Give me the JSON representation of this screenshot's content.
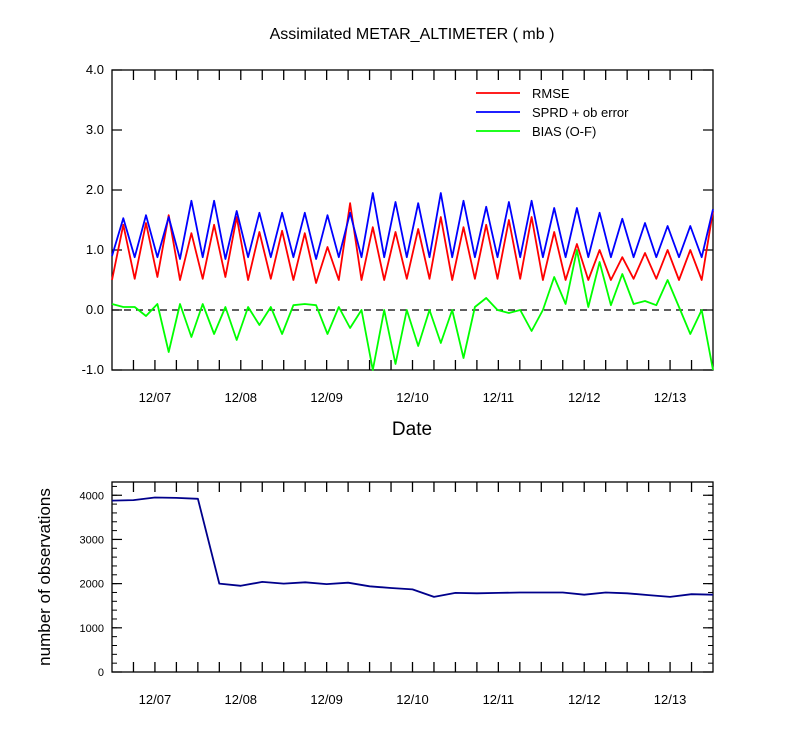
{
  "chart_data": [
    {
      "type": "line",
      "title": "Assimilated METAR_ALTIMETER ( mb )",
      "xlabel": "Date",
      "ylabel": "",
      "ylim": [
        -1.0,
        4.0
      ],
      "yticks": [
        "4.0",
        "3.0",
        "2.0",
        "1.0",
        "0.0",
        "-1.0"
      ],
      "ytick_values": [
        4,
        3,
        2,
        1,
        0,
        -1
      ],
      "xlim": [
        0,
        28
      ],
      "date_labels": [
        "12/07",
        "12/08",
        "12/09",
        "12/10",
        "12/11",
        "12/12",
        "12/13"
      ],
      "date_positions": [
        2,
        6,
        10,
        14,
        18,
        22,
        26
      ],
      "legend_position": "top-right",
      "zero_line": "dashed",
      "series": [
        {
          "name": "RMSE",
          "color": "#ff0000",
          "values": [
            0.5,
            1.42,
            0.52,
            1.45,
            0.55,
            1.58,
            0.5,
            1.28,
            0.52,
            1.42,
            0.55,
            1.55,
            0.5,
            1.3,
            0.52,
            1.32,
            0.5,
            1.28,
            0.45,
            1.05,
            0.5,
            1.78,
            0.5,
            1.38,
            0.5,
            1.3,
            0.52,
            1.35,
            0.52,
            1.55,
            0.5,
            1.38,
            0.52,
            1.42,
            0.52,
            1.5,
            0.52,
            1.55,
            0.5,
            1.3,
            0.5,
            1.1,
            0.5,
            1.0,
            0.5,
            0.88,
            0.52,
            0.95,
            0.52,
            1.0,
            0.5,
            1.0,
            0.5,
            1.65
          ]
        },
        {
          "name": "SPRD + ob error",
          "color": "#0000ff",
          "values": [
            0.9,
            1.53,
            0.88,
            1.58,
            0.88,
            1.55,
            0.85,
            1.82,
            0.88,
            1.82,
            0.85,
            1.65,
            0.88,
            1.62,
            0.88,
            1.62,
            0.88,
            1.62,
            0.85,
            1.58,
            0.88,
            1.62,
            0.88,
            1.95,
            0.88,
            1.8,
            0.88,
            1.78,
            0.88,
            1.95,
            0.88,
            1.82,
            0.88,
            1.72,
            0.88,
            1.8,
            0.88,
            1.82,
            0.88,
            1.7,
            0.88,
            1.7,
            0.88,
            1.62,
            0.88,
            1.52,
            0.88,
            1.45,
            0.88,
            1.4,
            0.88,
            1.4,
            0.88,
            1.68
          ]
        },
        {
          "name": "BIAS (O-F)",
          "color": "#00ff00",
          "values": [
            0.1,
            0.05,
            0.05,
            -0.1,
            0.1,
            -0.7,
            0.1,
            -0.45,
            0.1,
            -0.4,
            0.05,
            -0.5,
            0.05,
            -0.25,
            0.05,
            -0.4,
            0.08,
            0.1,
            0.08,
            -0.4,
            0.05,
            -0.3,
            0.0,
            -1.0,
            0.0,
            -0.9,
            0.0,
            -0.6,
            0.0,
            -0.55,
            0.0,
            -0.8,
            0.05,
            0.2,
            0.0,
            -0.05,
            0.0,
            -0.35,
            0.0,
            0.55,
            0.1,
            1.0,
            0.05,
            0.8,
            0.08,
            0.6,
            0.1,
            0.15,
            0.08,
            0.5,
            0.05,
            -0.4,
            0.0,
            -1.0
          ]
        }
      ]
    },
    {
      "type": "line",
      "title": "",
      "xlabel": "",
      "ylabel": "number of observations",
      "ylim": [
        0,
        4300
      ],
      "yticks": [
        "4000",
        "3000",
        "2000",
        "1000",
        "0"
      ],
      "ytick_values": [
        4000,
        3000,
        2000,
        1000,
        0
      ],
      "xlim": [
        0,
        28
      ],
      "date_labels": [
        "12/07",
        "12/08",
        "12/09",
        "12/10",
        "12/11",
        "12/12",
        "12/13"
      ],
      "date_positions": [
        2,
        6,
        10,
        14,
        18,
        22,
        26
      ],
      "series": [
        {
          "name": "observations",
          "color": "#00008b",
          "values": [
            3880,
            3890,
            3950,
            3940,
            3920,
            2000,
            1950,
            2040,
            2000,
            2030,
            1990,
            2020,
            1940,
            1900,
            1870,
            1700,
            1790,
            1780,
            1790,
            1800,
            1800,
            1800,
            1750,
            1800,
            1780,
            1740,
            1700,
            1760,
            1750
          ]
        }
      ]
    }
  ]
}
